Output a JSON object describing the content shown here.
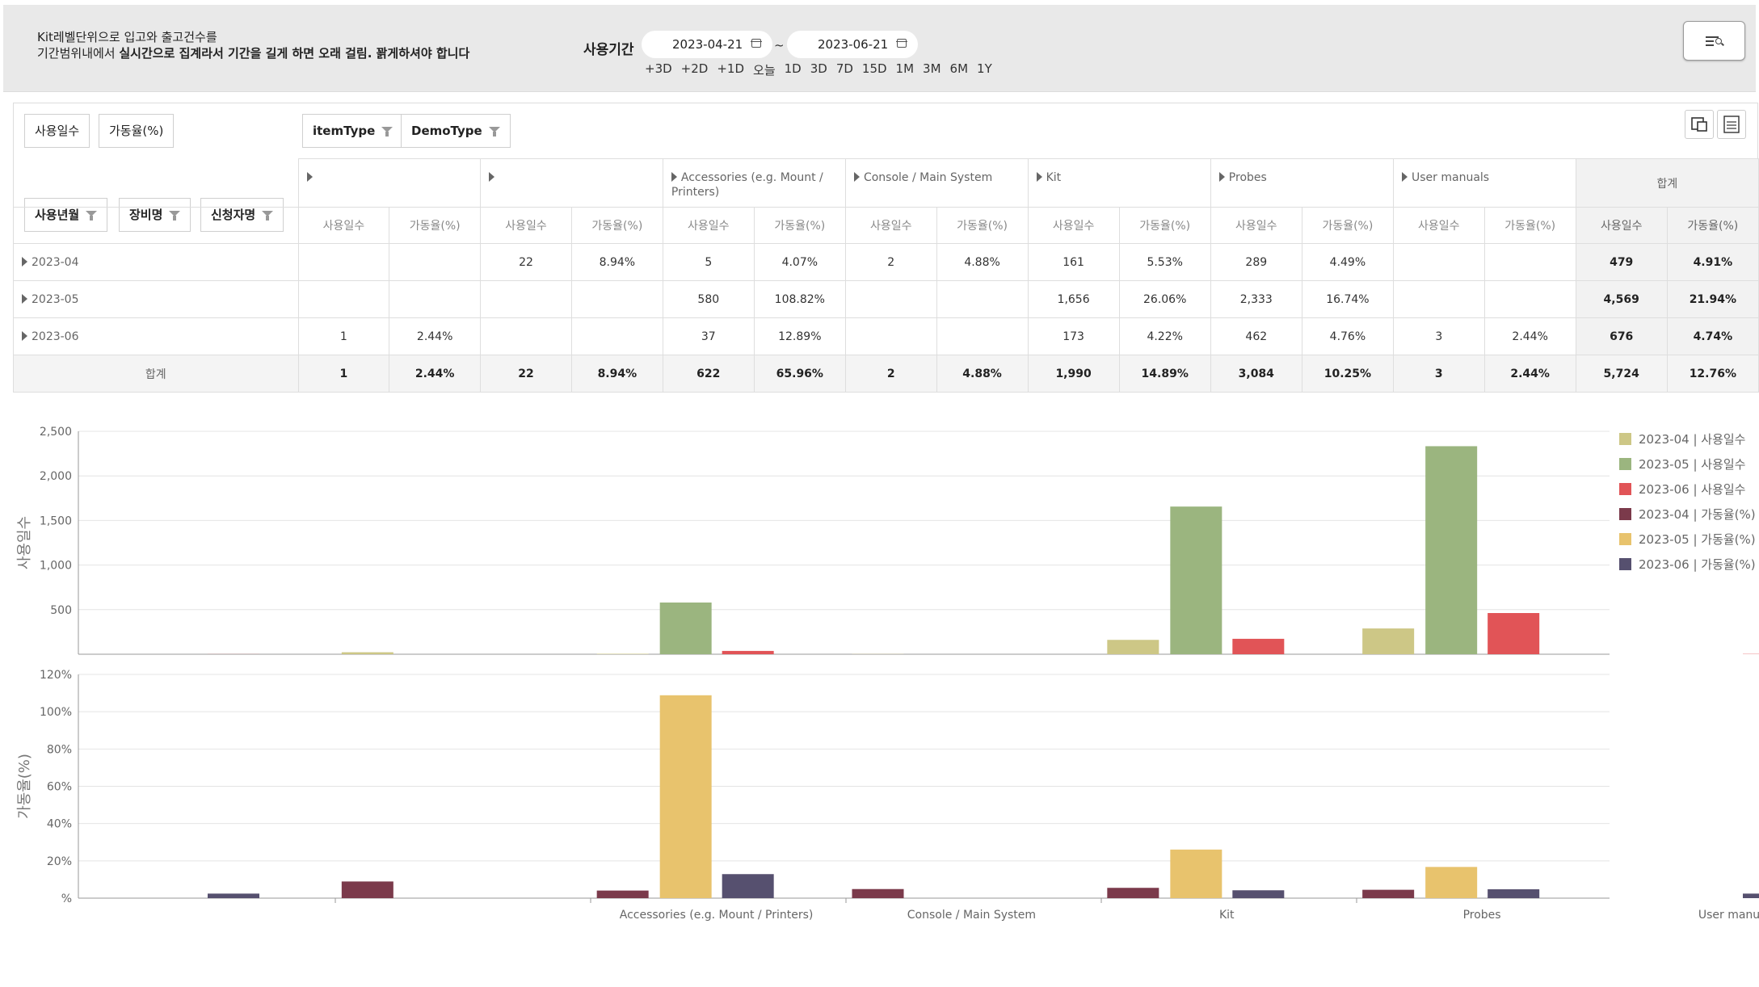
{
  "header": {
    "notice_line1": "Kit레벨단위으로 입고와 출고건수를",
    "notice_line2_pre": "기간범위내에서 ",
    "notice_line2_bold": "실시간으로 집계라서 기간을 길게 하면 오래 걸림. 꽑게하셔야 합니다",
    "period_label": "사용기간",
    "start_date": "2023-04-21",
    "end_date": "2023-06-21",
    "tilde": "~",
    "quick_ranges": [
      "+3D",
      "+2D",
      "+1D",
      "오늘",
      "1D",
      "3D",
      "7D",
      "15D",
      "1M",
      "3M",
      "6M",
      "1Y"
    ]
  },
  "pivot": {
    "value_chips": [
      "사용일수",
      "가동율(%)"
    ],
    "column_chips": [
      "itemType",
      "DemoType"
    ],
    "row_chips": [
      "사용년월",
      "장비명",
      "신청자명"
    ],
    "groups": [
      "",
      "",
      "Accessories (e.g. Mount / Printers)",
      "Console / Main System",
      "Kit",
      "Probes",
      "User manuals"
    ],
    "total_label": "합계",
    "measure_labels": [
      "사용일수",
      "가동율(%)"
    ],
    "rows": [
      {
        "label": "2023-04",
        "cells": [
          "",
          "",
          "22",
          "8.94%",
          "5",
          "4.07%",
          "2",
          "4.88%",
          "161",
          "5.53%",
          "289",
          "4.49%",
          "",
          ""
        ],
        "total": [
          "479",
          "4.91%"
        ]
      },
      {
        "label": "2023-05",
        "cells": [
          "",
          "",
          "",
          "",
          "580",
          "108.82%",
          "",
          "",
          "1,656",
          "26.06%",
          "2,333",
          "16.74%",
          "",
          ""
        ],
        "total": [
          "4,569",
          "21.94%"
        ]
      },
      {
        "label": "2023-06",
        "cells": [
          "1",
          "2.44%",
          "",
          "",
          "37",
          "12.89%",
          "",
          "",
          "173",
          "4.22%",
          "462",
          "4.76%",
          "3",
          "2.44%"
        ],
        "total": [
          "676",
          "4.74%"
        ]
      }
    ],
    "grand_total": {
      "label": "합계",
      "cells": [
        "1",
        "2.44%",
        "22",
        "8.94%",
        "622",
        "65.96%",
        "2",
        "4.88%",
        "1,990",
        "14.89%",
        "3,084",
        "10.25%",
        "3",
        "2.44%"
      ],
      "total": [
        "5,724",
        "12.76%"
      ]
    }
  },
  "chart_data": [
    {
      "type": "bar",
      "ylabel": "사용일수",
      "ylim": [
        0,
        2500
      ],
      "yticks": [
        "2,500",
        "2,000",
        "1,500",
        "1,000",
        "500"
      ],
      "categories": [
        "",
        "",
        "Accessories (e.g. Mount / Printers)",
        "Console / Main System",
        "Kit",
        "Probes",
        "User manuals"
      ],
      "series": [
        {
          "name": "2023-04 | 사용일수",
          "color": "#cdc786",
          "values": [
            0,
            22,
            5,
            2,
            161,
            289,
            0
          ]
        },
        {
          "name": "2023-05 | 사용일수",
          "color": "#9bb57f",
          "values": [
            0,
            0,
            580,
            0,
            1656,
            2333,
            0
          ]
        },
        {
          "name": "2023-06 | 사용일수",
          "color": "#e15457",
          "values": [
            1,
            0,
            37,
            0,
            173,
            462,
            3
          ]
        }
      ]
    },
    {
      "type": "bar",
      "ylabel": "가동율(%)",
      "ylim": [
        0,
        120
      ],
      "yticks": [
        "120%",
        "100%",
        "80%",
        "60%",
        "40%",
        "20%",
        "%"
      ],
      "categories": [
        "",
        "",
        "Accessories (e.g. Mount / Printers)",
        "Console / Main System",
        "Kit",
        "Probes",
        "User manuals"
      ],
      "series": [
        {
          "name": "2023-04 | 가동율(%)",
          "color": "#7b3a4b",
          "values": [
            0,
            8.94,
            4.07,
            4.88,
            5.53,
            4.49,
            0
          ]
        },
        {
          "name": "2023-05 | 가동율(%)",
          "color": "#e8c36d",
          "values": [
            0,
            0,
            108.82,
            0,
            26.06,
            16.74,
            0
          ]
        },
        {
          "name": "2023-06 | 가동율(%)",
          "color": "#56506f",
          "values": [
            2.44,
            0,
            12.89,
            0,
            4.22,
            4.76,
            2.44
          ]
        }
      ]
    }
  ]
}
